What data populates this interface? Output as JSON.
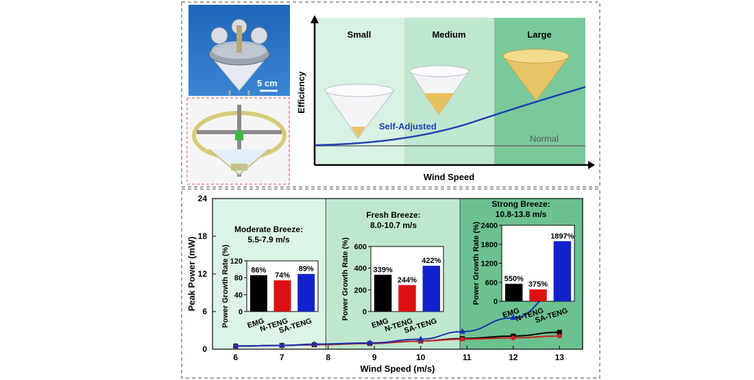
{
  "photo": {
    "scale_label": "5 cm"
  },
  "concept_chart": {
    "xlabel": "Wind Speed",
    "ylabel": "Efficiency",
    "regions": [
      "Small",
      "Medium",
      "Large"
    ],
    "curve_labels": {
      "adjusted": "Self-Adjusted",
      "normal": "Normal"
    },
    "colors": {
      "adjusted": "#1f3fb0",
      "normal": "#666666",
      "small": "#d8f2e4",
      "medium": "#bfe6cf",
      "large": "#79c99b"
    }
  },
  "chart_data": [
    {
      "type": "line",
      "title": "",
      "xlabel": "Wind Speed (m/s)",
      "ylabel": "Peak Power (mW)",
      "xlim": [
        5.5,
        13.5
      ],
      "ylim": [
        0,
        24
      ],
      "xticks": [
        6,
        7,
        8,
        9,
        10,
        11,
        12,
        13
      ],
      "yticks": [
        0,
        6,
        12,
        18,
        24
      ],
      "x": [
        6,
        7,
        7.7,
        8.9,
        10,
        10.9,
        12,
        13
      ],
      "series": [
        {
          "values": [
            0.5,
            0.6,
            0.7,
            0.9,
            1.3,
            1.7,
            2.1,
            2.7
          ],
          "color": "#000000",
          "marker": "square"
        },
        {
          "values": [
            0.5,
            0.6,
            0.7,
            0.9,
            1.3,
            1.6,
            1.8,
            2.1
          ],
          "color": "#cc2222",
          "marker": "circle"
        },
        {
          "values": [
            0.5,
            0.6,
            0.8,
            1.0,
            1.6,
            2.8,
            5.0,
            9.2
          ],
          "color": "#1530b0",
          "marker": "triangle"
        }
      ],
      "regions": [
        {
          "label": "Moderate Breeze:",
          "range": "5.5-7.9 m/s",
          "from": 5.5,
          "to": 7.95,
          "color": "#dcf4e6"
        },
        {
          "label": "Fresh Breeze:",
          "range": "8.0-10.7 m/s",
          "from": 7.95,
          "to": 10.85,
          "color": "#bfe7cf"
        },
        {
          "label": "Strong Breeze:",
          "range": "10.8-13.8 m/s",
          "from": 10.85,
          "to": 13.5,
          "color": "#6cc190"
        }
      ]
    },
    {
      "type": "bar",
      "title": "",
      "ylabel": "Power Growth Rate (%)",
      "categories": [
        "EMG",
        "N-TENG",
        "SA-TENG"
      ],
      "values": [
        86,
        74,
        89
      ],
      "data_labels": [
        "86%",
        "74%",
        "89%"
      ],
      "yticks": [
        0,
        40,
        80,
        120
      ],
      "ylim": [
        0,
        120
      ],
      "colors": [
        "#000000",
        "#dd1111",
        "#1122cc"
      ]
    },
    {
      "type": "bar",
      "title": "",
      "ylabel": "Power Growth Rate (%)",
      "categories": [
        "EMG",
        "N-TENG",
        "SA-TENG"
      ],
      "values": [
        339,
        244,
        422
      ],
      "data_labels": [
        "339%",
        "244%",
        "422%"
      ],
      "yticks": [
        0,
        200,
        400,
        600
      ],
      "ylim": [
        0,
        600
      ],
      "colors": [
        "#000000",
        "#dd1111",
        "#1122cc"
      ]
    },
    {
      "type": "bar",
      "title": "",
      "ylabel": "Power Growth Rate (%)",
      "categories": [
        "EMG",
        "N-TENG",
        "SA-TENG"
      ],
      "values": [
        550,
        375,
        1897
      ],
      "data_labels": [
        "550%",
        "375%",
        "1897%"
      ],
      "yticks": [
        0,
        600,
        1200,
        1800,
        2400
      ],
      "ylim": [
        0,
        2400
      ],
      "colors": [
        "#000000",
        "#dd1111",
        "#1122cc"
      ]
    }
  ]
}
